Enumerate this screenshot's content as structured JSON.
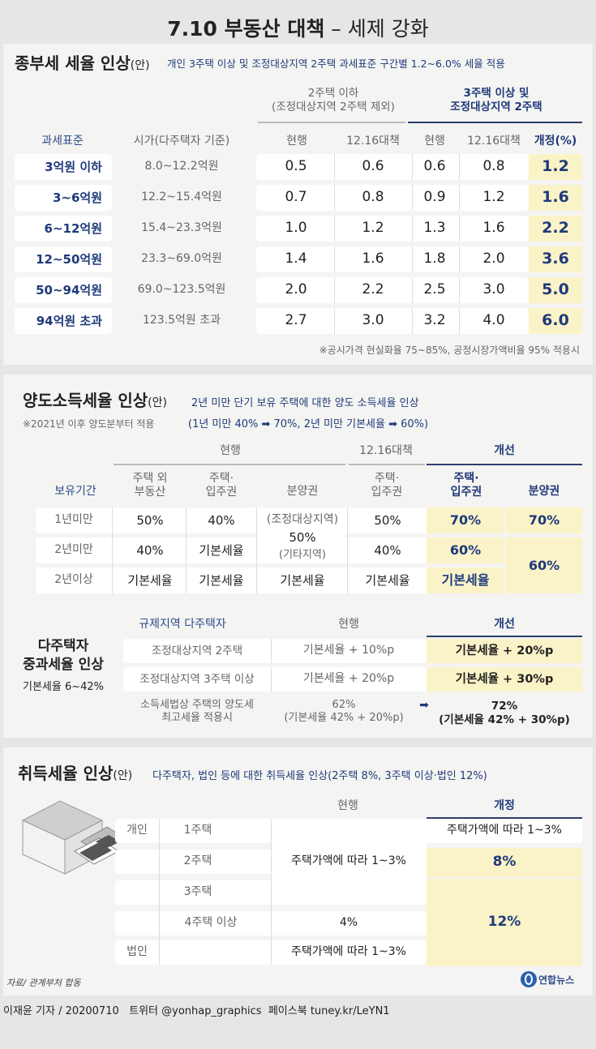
{
  "title": {
    "main": "7.10 부동산 대책",
    "dash": " – ",
    "sub": "세제 강화"
  },
  "s1": {
    "heading": "종부세 세율 인상",
    "heading_suffix": "(안)",
    "desc": "개인 3주택 이상 및 조정대상지역 2주택 과세표준 구간별 1.2~6.0% 세율 적용",
    "group1": "2주택 이하",
    "group1_sub": "(조정대상지역 2주택 제외)",
    "group2_line1": "3주택 이상 및",
    "group2_line2": "조정대상지역 2주택",
    "cols": [
      "과세표준",
      "시가(다주택자 기준)",
      "현행",
      "12.16대책",
      "현행",
      "12.16대책",
      "개정(%)"
    ],
    "rows": [
      [
        "3억원 이하",
        "8.0~12.2억원",
        "0.5",
        "0.6",
        "0.6",
        "0.8",
        "1.2"
      ],
      [
        "3~6억원",
        "12.2~15.4억원",
        "0.7",
        "0.8",
        "0.9",
        "1.2",
        "1.6"
      ],
      [
        "6~12억원",
        "15.4~23.3억원",
        "1.0",
        "1.2",
        "1.3",
        "1.6",
        "2.2"
      ],
      [
        "12~50억원",
        "23.3~69.0억원",
        "1.4",
        "1.6",
        "1.8",
        "2.0",
        "3.6"
      ],
      [
        "50~94억원",
        "69.0~123.5억원",
        "2.0",
        "2.2",
        "2.5",
        "3.0",
        "5.0"
      ],
      [
        "94억원 초과",
        "123.5억원 초과",
        "2.7",
        "3.0",
        "3.2",
        "4.0",
        "6.0"
      ]
    ],
    "note": "※공시가격 현실화율 75~85%, 공정시장가액비율 95% 적용시"
  },
  "s2": {
    "heading": "양도소득세율 인상",
    "heading_suffix": "(안)",
    "desc": "2년 미만 단기 보유 주택에 대한 양도 소득세율 인상",
    "note": "※2021년 이후 양도분부터 적용",
    "note2": "(1년 미만 40% ➡ 70%, 2년 미만 기본세율 ➡ 60%)",
    "group_current": "현행",
    "group_1216": "12.16대책",
    "group_new": "개선",
    "col_period": "보유기간",
    "col_a1": "주택 외",
    "col_a2": "부동산",
    "col_b1": "주택·",
    "col_b2": "입주권",
    "col_c": "분양권",
    "col_d1": "주택·",
    "col_d2": "입주권",
    "col_e1": "주택·",
    "col_e2": "입주권",
    "col_f": "분양권",
    "r1": [
      "1년미만",
      "50%",
      "40%",
      "(조정대상지역)",
      "50%",
      "70%",
      "70%"
    ],
    "r2": [
      "2년미만",
      "40%",
      "기본세율",
      "50%",
      "40%",
      "60%",
      "60%"
    ],
    "r2_c2": "(기타지역)",
    "r3": [
      "2년이상",
      "기본세율",
      "기본세율",
      "기본세율",
      "기본세율",
      "기본세율"
    ],
    "multi": {
      "title1": "다주택자",
      "title2": "중과세율 인상",
      "title3": "기본세율 6~42%",
      "h_left": "규제지역 다주택자",
      "h_mid": "현행",
      "h_right": "개선",
      "rows": [
        [
          "조정대상지역 2주택",
          "기본세율 + 10%p",
          "기본세율 + 20%p"
        ],
        [
          "조정대상지역 3주택 이상",
          "기본세율 + 20%p",
          "기본세율 + 30%p"
        ]
      ],
      "last_left1": "소득세법상 주택의 양도세",
      "last_left2": "최고세율 적용시",
      "last_mid1": "62%",
      "last_mid2": "(기본세율 42% + 20%p)",
      "last_arrow": "➡",
      "last_right1": "72%",
      "last_right2": "(기본세율 42% + 30%p)"
    }
  },
  "s3": {
    "heading": "취득세율 인상",
    "heading_suffix": "(안)",
    "desc": "다주택자, 법인 등에 대한 취득세율 인상(2주택 8%, 3주택 이상·법인 12%)",
    "h_current": "현행",
    "h_new": "개정",
    "individual": "개인",
    "corp": "법인",
    "rows": [
      "1주택",
      "2주택",
      "3주택",
      "4주택 이상"
    ],
    "cur_main": "주택가액에 따라 1~3%",
    "cur_4": "4%",
    "cur_corp": "주택가액에 따라 1~3%",
    "new_1": "주택가액에 따라 1~3%",
    "new_2": "8%",
    "new_3": "12%"
  },
  "source": "자료/ 관계부처 합동",
  "logo": "연합뉴스",
  "footer": "이재윤 기자 / 20200710   트위터 @yonhap_graphics  페이스북 tuney.kr/LeYN1",
  "colors": {
    "navy": "#1f3a7a",
    "highlight": "#fbf3c8",
    "panel": "#f4f4f2"
  }
}
